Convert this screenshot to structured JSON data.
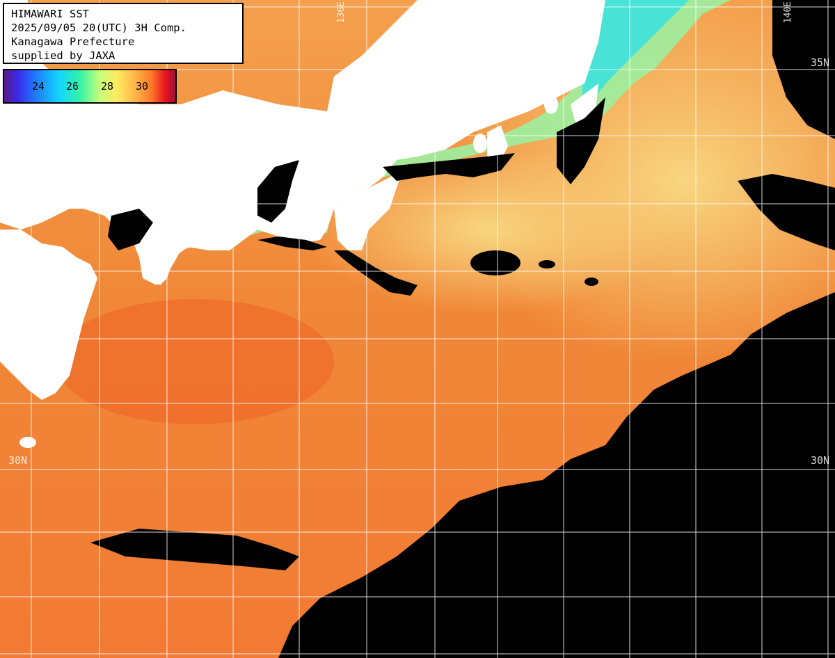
{
  "header": {
    "line1": "HIMAWARI SST",
    "line2": "2025/09/05 20(UTC) 3H Comp.",
    "line3": "Kanagawa Prefecture",
    "line4": "supplied by JAXA"
  },
  "legend": {
    "ticks": [
      "24",
      "26",
      "28",
      "30"
    ]
  },
  "grid": {
    "lat_labels": [
      "30N",
      "30N",
      "35N"
    ],
    "lon_labels": [
      "136E",
      "140E"
    ]
  },
  "colors": {
    "land": "#ffffff",
    "cloud": "#000000",
    "warm_sea": "#f28a3e",
    "cool_sea": "#f7c070",
    "coastal_cool": "#8cf0a0",
    "grid": "#ffffff"
  }
}
